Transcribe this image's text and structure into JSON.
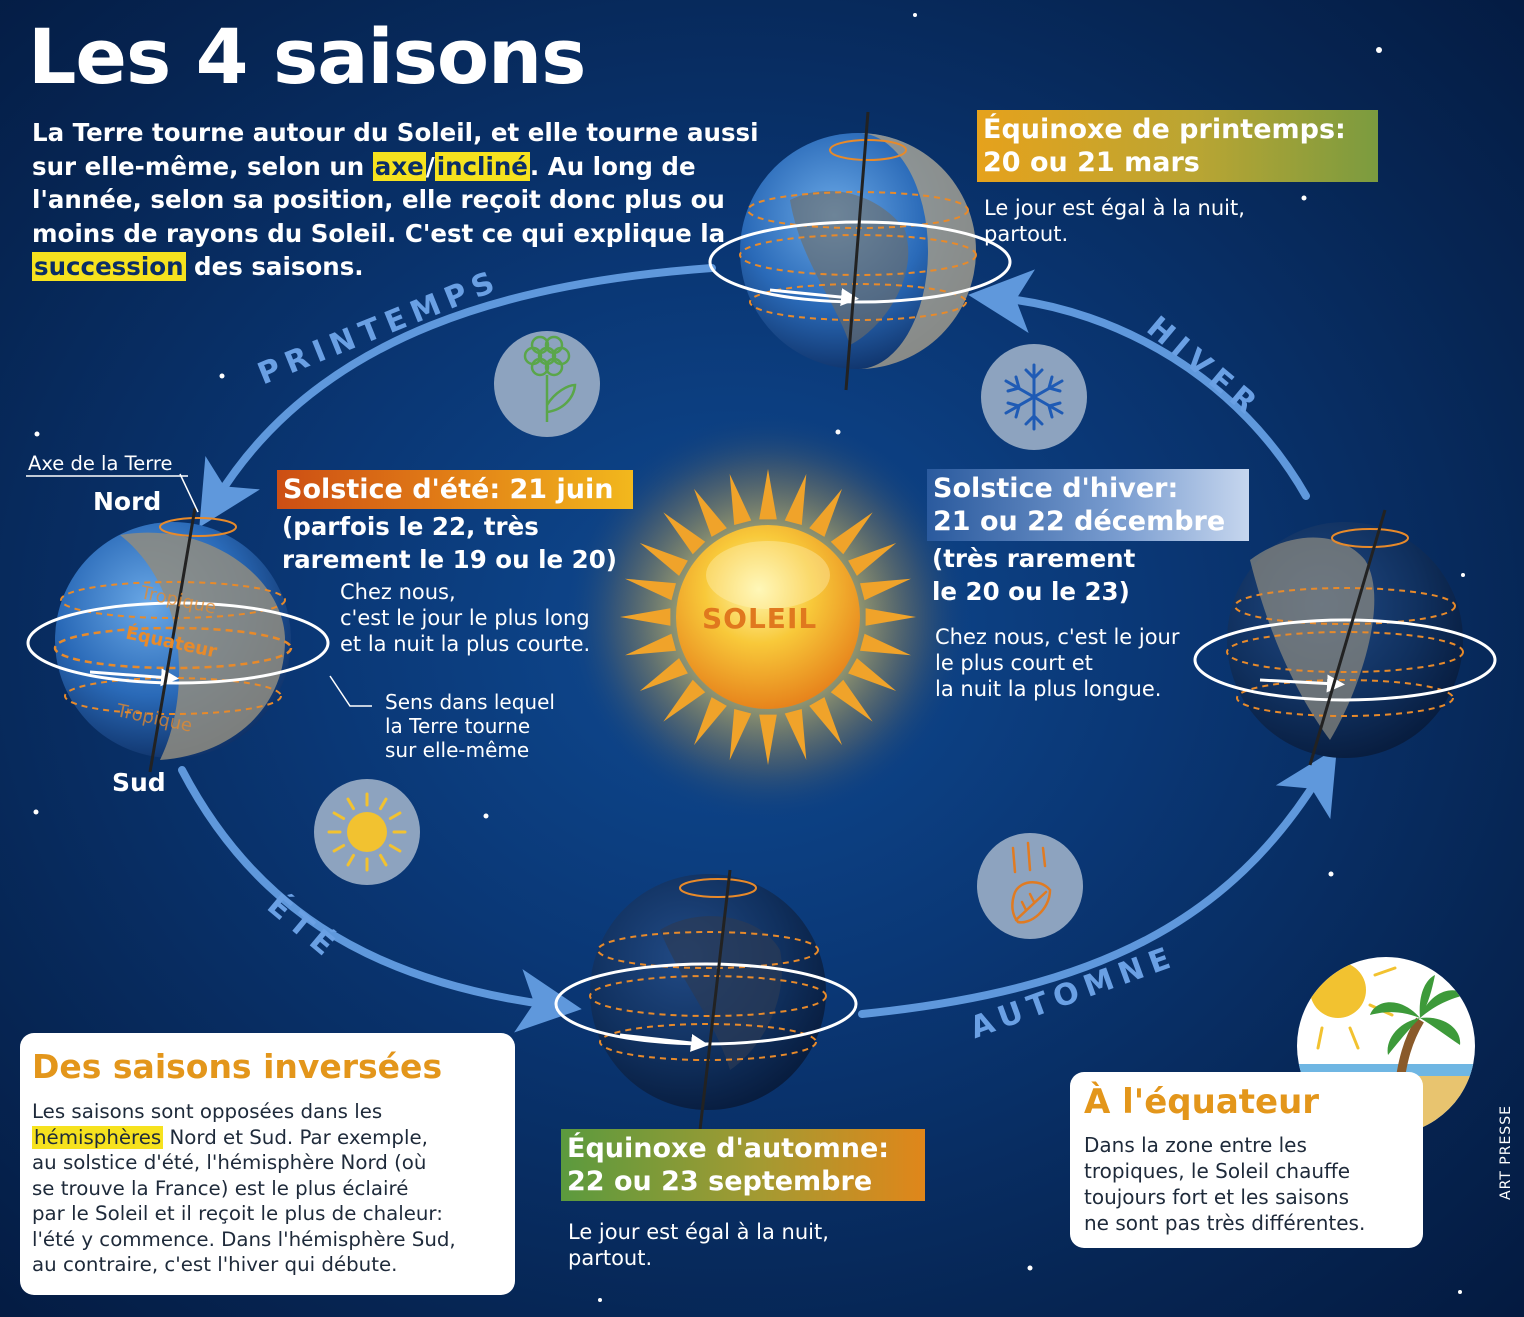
{
  "title": "Les 4 saisons",
  "intro": {
    "before_axe": "La Terre tourne autour du Soleil, et elle tourne aussi sur elle-même, selon un ",
    "axe": "axe",
    "incline": "incliné",
    "middle": ". Au long de l'année, selon sa position, elle reçoit donc plus ou moins de rayons du Soleil. C'est ce qui explique la ",
    "succession": "succession",
    "after": " des saisons."
  },
  "seasons": {
    "printemps": "PRINTEMPS",
    "ete": "ÉTÉ",
    "automne": "AUTOMNE",
    "hiver": "HIVER"
  },
  "spring_equinox": {
    "title_line1": "Équinoxe de printemps:",
    "title_line2": "20 ou 21 mars",
    "desc_line1": "Le jour est égal à la nuit,",
    "desc_line2": "partout."
  },
  "summer_solstice": {
    "title": "Solstice d'été: 21 juin",
    "sub_line1": "(parfois le 22, très",
    "sub_line2": "rarement le 19 ou le 20)",
    "desc_line1": "Chez nous,",
    "desc_line2": "c'est le jour le plus long",
    "desc_line3": "et la nuit la plus courte."
  },
  "winter_solstice": {
    "title_line1": "Solstice d'hiver:",
    "title_line2": "21 ou 22 décembre",
    "sub_line1": "(très rarement",
    "sub_line2": "le 20 ou le 23)",
    "desc_line1": "Chez nous, c'est le jour",
    "desc_line2": "le plus court et",
    "desc_line3": "la nuit la plus longue."
  },
  "autumn_equinox": {
    "title_line1": "Équinoxe d'automne:",
    "title_line2": "22 ou 23 septembre",
    "desc_line1": "Le jour est égal à la nuit,",
    "desc_line2": "partout."
  },
  "sun_label": "SOLEIL",
  "earth_labels": {
    "axe": "Axe de la Terre",
    "nord": "Nord",
    "sud": "Sud",
    "tropique_top": "Tropique",
    "equateur": "Équateur",
    "tropique_bottom": "Tropique",
    "rotation_line1": "Sens dans lequel",
    "rotation_line2": "la Terre tourne",
    "rotation_line3": "sur elle-même"
  },
  "box_inversees": {
    "title": "Des saisons inversées",
    "line1": "Les saisons sont opposées dans les",
    "hemispheres": "hémisphères",
    "line2_rest": " Nord et Sud. Par exemple,",
    "line3": "au solstice d'été, l'hémisphère Nord (où",
    "line4": "se trouve la France) est le plus éclairé",
    "line5": "par le Soleil et il reçoit le plus de chaleur:",
    "line6": "l'été y commence. Dans l'hémisphère Sud,",
    "line7": "au contraire, c'est l'hiver qui débute."
  },
  "box_equateur": {
    "title": "À l'équateur",
    "line1": "Dans la zone entre les",
    "line2": "tropiques, le Soleil chauffe",
    "line3": "toujours fort et les saisons",
    "line4": "ne sont pas très différentes."
  },
  "credit": "ART PRESSE",
  "colors": {
    "orbit_arrow": "#5f98dc",
    "highlight": "#f6e21e",
    "box_title": "#e3961b",
    "orange_line": "#e88a2a"
  },
  "icons": [
    "flower-icon",
    "snowflake-icon",
    "sun-icon",
    "falling-leaf-icon",
    "palm-beach-icon"
  ]
}
